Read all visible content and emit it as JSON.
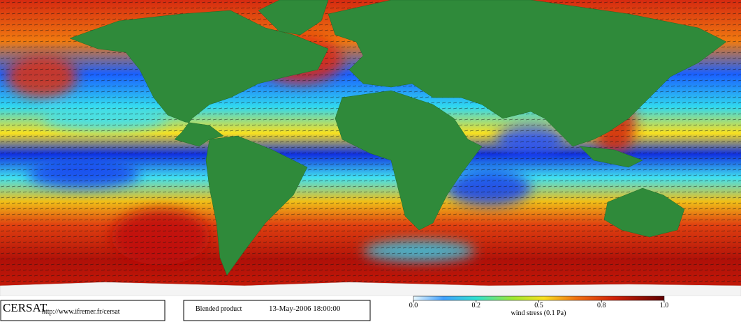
{
  "logo": "CERSAT",
  "url": "http://www.ifremer.fr/cersat",
  "product": "Blended product",
  "timestamp": "13-May-2006 18:00:00",
  "colorbar": {
    "label": "wind stress (0.1 Pa)",
    "ticks": [
      {
        "value": 0,
        "label": "0.0"
      },
      {
        "value": 0.2,
        "label": "0.2"
      },
      {
        "value": 0.5,
        "label": "0.5"
      },
      {
        "value": 0.8,
        "label": "0.8"
      },
      {
        "value": 1,
        "label": "1.0"
      }
    ]
  }
}
